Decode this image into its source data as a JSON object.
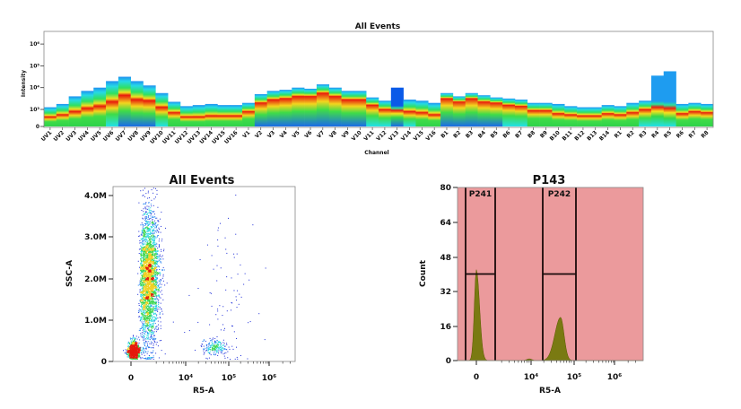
{
  "chart_data": [
    {
      "type": "heatmap",
      "title": "All Events",
      "xlabel": "Channel",
      "ylabel": "Intensity",
      "y_ticks": [
        "0",
        "10³",
        "10⁴",
        "10⁵",
        "10⁶"
      ],
      "y_scale": "biexponential",
      "channels": [
        "UV1",
        "UV2",
        "UV3",
        "UV4",
        "UV5",
        "UV6",
        "UV7",
        "UV8",
        "UV9",
        "UV10",
        "UV11",
        "UV12",
        "UV13",
        "UV14",
        "UV15",
        "UV16",
        "V1",
        "V2",
        "V3",
        "V4",
        "V5",
        "V6",
        "V7",
        "V8",
        "V9",
        "V10",
        "V11",
        "V12",
        "V13",
        "V14",
        "V15",
        "V16",
        "B1",
        "B2",
        "B3",
        "B4",
        "B5",
        "B6",
        "B7",
        "B8",
        "B9",
        "B10",
        "B11",
        "B12",
        "B13",
        "B14",
        "R1",
        "R2",
        "R3",
        "R4",
        "R5",
        "R6",
        "R7",
        "R8"
      ],
      "max_log_intensity": [
        3.1,
        3.25,
        3.6,
        3.85,
        4.0,
        4.3,
        4.5,
        4.3,
        4.1,
        3.75,
        3.35,
        3.15,
        3.2,
        3.25,
        3.2,
        3.2,
        3.3,
        3.7,
        3.85,
        3.9,
        4.0,
        3.95,
        4.15,
        4.0,
        3.85,
        3.85,
        3.55,
        3.4,
        4.0,
        3.45,
        3.4,
        3.3,
        3.75,
        3.6,
        3.75,
        3.65,
        3.55,
        3.5,
        3.45,
        3.3,
        3.3,
        3.25,
        3.15,
        3.1,
        3.1,
        3.2,
        3.15,
        3.3,
        3.4,
        4.55,
        4.75,
        3.25,
        3.3,
        3.25
      ],
      "peak_log_intensity": [
        2.65,
        2.75,
        2.9,
        3.05,
        3.15,
        3.35,
        3.65,
        3.45,
        3.4,
        3.1,
        2.85,
        2.65,
        2.65,
        2.7,
        2.7,
        2.7,
        2.9,
        3.3,
        3.45,
        3.5,
        3.6,
        3.6,
        3.75,
        3.6,
        3.45,
        3.45,
        3.2,
        3.0,
        2.95,
        2.9,
        2.85,
        2.75,
        3.5,
        3.35,
        3.5,
        3.35,
        3.3,
        3.2,
        3.15,
        2.95,
        2.95,
        2.8,
        2.75,
        2.7,
        2.7,
        2.8,
        2.75,
        2.85,
        3.0,
        3.1,
        3.05,
        2.8,
        2.9,
        2.85
      ],
      "low_tail": [
        "g",
        "g",
        "g",
        "g",
        "g",
        "c",
        "b",
        "b",
        "b",
        "c",
        "g",
        "g",
        "g",
        "g",
        "g",
        "g",
        "g",
        "b",
        "b",
        "b",
        "b",
        "b",
        "b",
        "b",
        "b",
        "b",
        "c",
        "c",
        "b",
        "c",
        "g",
        "g",
        "b",
        "b",
        "b",
        "b",
        "b",
        "c",
        "c",
        "g",
        "g",
        "g",
        "g",
        "g",
        "g",
        "g",
        "g",
        "g",
        "c",
        "c",
        "c",
        "g",
        "g",
        "g"
      ],
      "top_edge": {
        "V13": "#0a5ae8",
        "R4": "#1e9cf0",
        "R5": "#1e9cf0"
      }
    },
    {
      "type": "scatter",
      "title": "All Events",
      "xlabel": "R5-A",
      "ylabel": "SSC-A",
      "x_scale": "biexponential",
      "x_ticks": [
        "0",
        "10⁴",
        "10⁵",
        "10⁶"
      ],
      "y_ticks": [
        "0",
        "1.0M",
        "2.0M",
        "3.0M",
        "4.0M"
      ],
      "ylim": [
        0,
        4200000
      ],
      "populations": [
        {
          "x_center": 1300,
          "y_center": 2000000,
          "x_log_spread": 0.12,
          "y_spread": 800000,
          "count": 3200
        },
        {
          "x_center": 200,
          "y_center": 250000,
          "x_log_spread": 0.0,
          "y_spread": 150000,
          "count": 900
        },
        {
          "x_center": 50000,
          "y_center": 350000,
          "x_log_spread": 0.15,
          "y_spread": 80000,
          "count": 220
        },
        {
          "x_center": 80000,
          "y_center": 1500000,
          "x_log_spread": 0.4,
          "y_spread": 1000000,
          "count": 90
        }
      ]
    },
    {
      "type": "area",
      "title": "P143",
      "xlabel": "R5-A",
      "ylabel": "Count",
      "x_scale": "biexponential",
      "x_ticks": [
        "0",
        "10⁴",
        "10⁵",
        "10⁶"
      ],
      "y_ticks": [
        "0",
        "16",
        "32",
        "48",
        "64",
        "80"
      ],
      "ylim": [
        0,
        80
      ],
      "peaks": [
        {
          "x_center": 0,
          "height": 42
        },
        {
          "x_center": 50000,
          "height": 20
        }
      ],
      "gates": [
        {
          "name": "P241",
          "x_range": [
            -300,
            2000
          ],
          "level": 40
        },
        {
          "name": "P242",
          "x_range": [
            18000,
            100000
          ],
          "level": 40
        }
      ],
      "colors": {
        "background": "#eb9a9c",
        "fill": "#7a7a12",
        "line": "#5a5a00"
      }
    }
  ]
}
